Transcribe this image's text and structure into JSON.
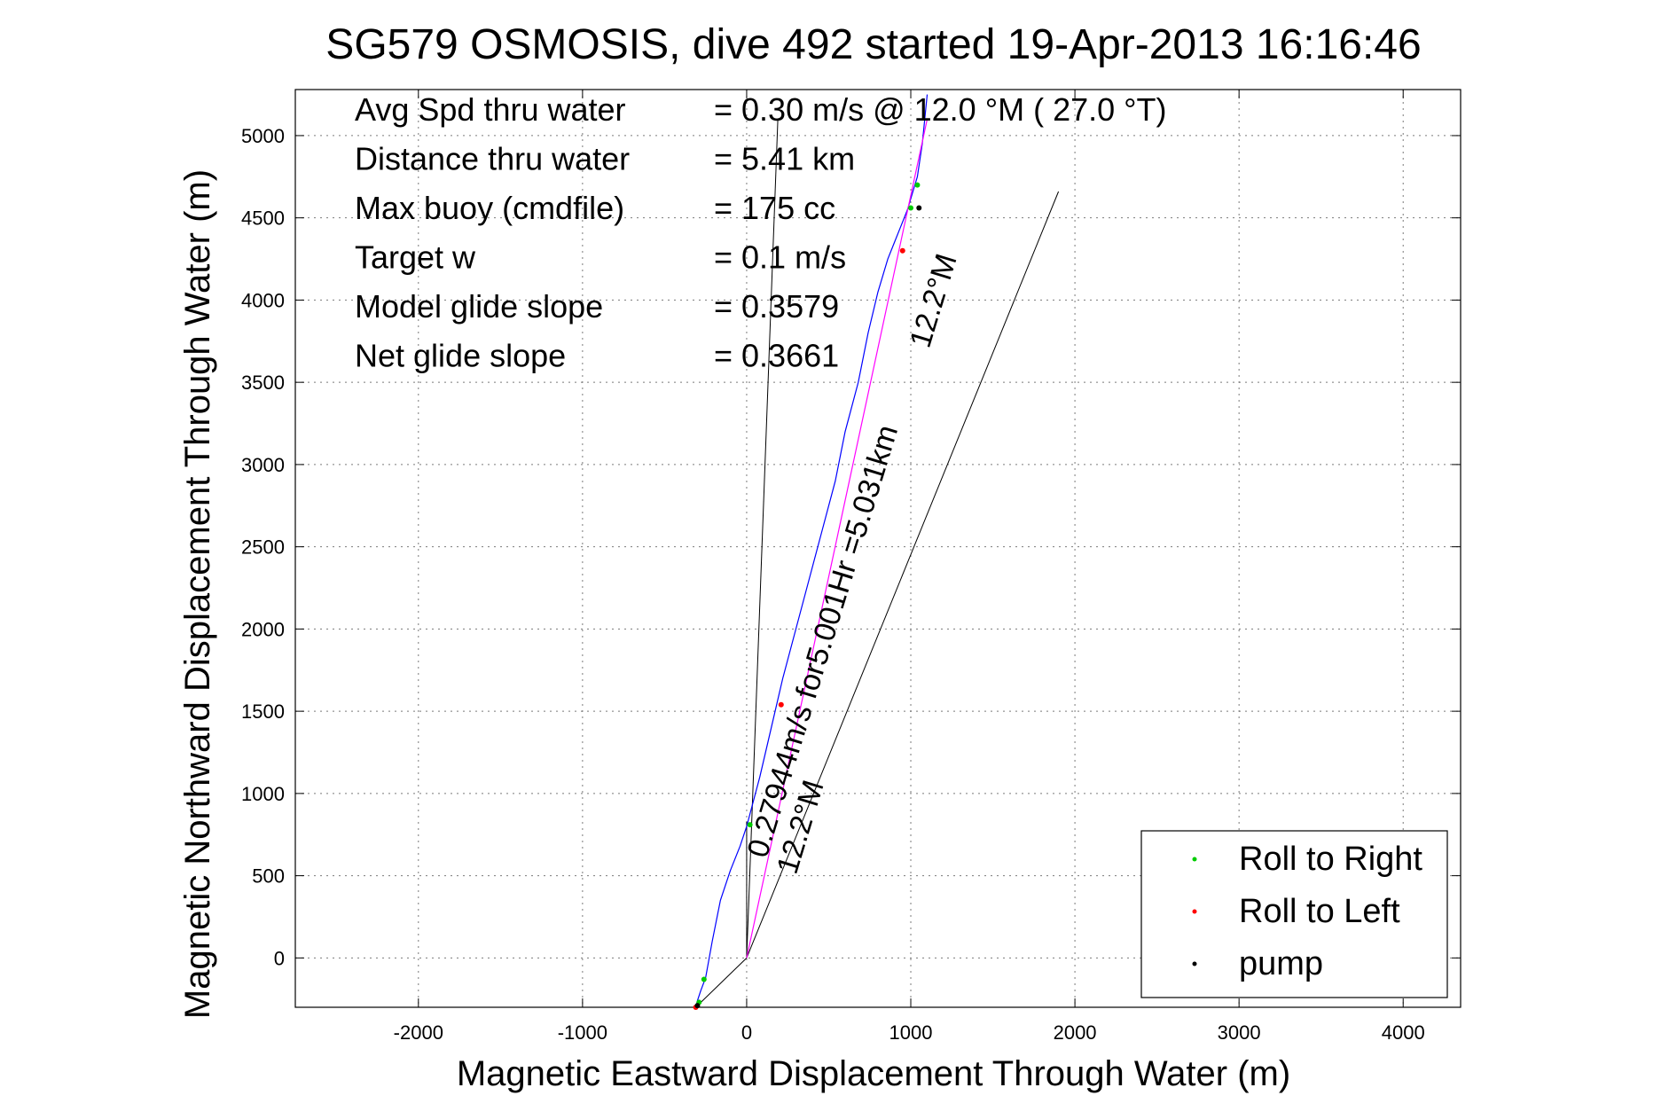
{
  "chart_data": {
    "type": "line",
    "title": "SG579 OSMOSIS, dive 492 started 19-Apr-2013 16:16:46",
    "xlabel": "Magnetic Eastward Displacement Through Water (m)",
    "ylabel": "Magnetic Northward Displacement Through Water (m)",
    "xlim": [
      -2750,
      4350
    ],
    "ylim": [
      -300,
      5280
    ],
    "xticks": [
      -2000,
      -1000,
      0,
      1000,
      2000,
      3000,
      4000
    ],
    "yticks": [
      0,
      500,
      1000,
      1500,
      2000,
      2500,
      3000,
      3500,
      4000,
      4500,
      5000
    ],
    "grid": true,
    "info": [
      {
        "label": "Avg Spd thru water",
        "value": "=  0.30 m/s @  12.0 °M ( 27.0 °T)"
      },
      {
        "label": "Distance thru water",
        "value": "=  5.41 km"
      },
      {
        "label": "Max buoy (cmdfile)",
        "value": "= 175 cc"
      },
      {
        "label": "Target w",
        "value": "= 0.1 m/s"
      },
      {
        "label": "Model glide slope",
        "value": "= 0.3579"
      },
      {
        "label": "Net glide slope",
        "value": "= 0.3661"
      }
    ],
    "series": [
      {
        "name": "track",
        "color": "#0000ff",
        "x": [
          -310,
          -300,
          -280,
          -250,
          -210,
          -160,
          -100,
          -40,
          0,
          80,
          150,
          220,
          300,
          380,
          460,
          540,
          600,
          680,
          740,
          800,
          860,
          900,
          940,
          980,
          1010,
          1040,
          1070,
          1100
        ],
        "y": [
          -300,
          -260,
          -200,
          -120,
          100,
          350,
          530,
          680,
          800,
          1100,
          1400,
          1700,
          2000,
          2300,
          2600,
          2900,
          3200,
          3500,
          3800,
          4050,
          4250,
          4350,
          4450,
          4550,
          4650,
          4750,
          4950,
          5250
        ]
      },
      {
        "name": "heading",
        "color": "#ff00ff",
        "x": [
          0,
          1100
        ],
        "y": [
          0,
          5100
        ]
      }
    ],
    "reference_lines": [
      {
        "x": [
          0,
          190
        ],
        "y": [
          0,
          5100
        ]
      },
      {
        "x": [
          0,
          1900
        ],
        "y": [
          0,
          4660
        ]
      },
      {
        "x": [
          0,
          0
        ],
        "y": [
          0,
          830
        ]
      },
      {
        "x": [
          -310,
          0
        ],
        "y": [
          -300,
          0
        ]
      }
    ],
    "markers": [
      {
        "series": "Roll to Right",
        "color": "#00cc00",
        "x": [
          -290,
          -260,
          20,
          1040,
          1000
        ],
        "y": [
          -270,
          -130,
          810,
          4700,
          4560
        ]
      },
      {
        "series": "Roll to Left",
        "color": "#ff0000",
        "x": [
          -310,
          210,
          950
        ],
        "y": [
          -300,
          1540,
          4300
        ]
      },
      {
        "series": "pump",
        "color": "#000000",
        "x": [
          -300,
          1050
        ],
        "y": [
          -290,
          4560
        ]
      }
    ],
    "annotations": [
      {
        "text": "0.27944m/s for5.001Hr =5.031km",
        "x": 120,
        "y": 600,
        "rotation_deg": -73
      },
      {
        "text": "12.2°M",
        "x": 300,
        "y": 500,
        "rotation_deg": -73
      },
      {
        "text": "12.2°M",
        "x": 1110,
        "y": 3700,
        "rotation_deg": -73
      }
    ],
    "legend": {
      "position": "bottom-right",
      "entries": [
        {
          "label": "Roll to Right",
          "color": "#00cc00"
        },
        {
          "label": "Roll to Left",
          "color": "#ff0000"
        },
        {
          "label": "pump",
          "color": "#000000"
        }
      ]
    }
  }
}
